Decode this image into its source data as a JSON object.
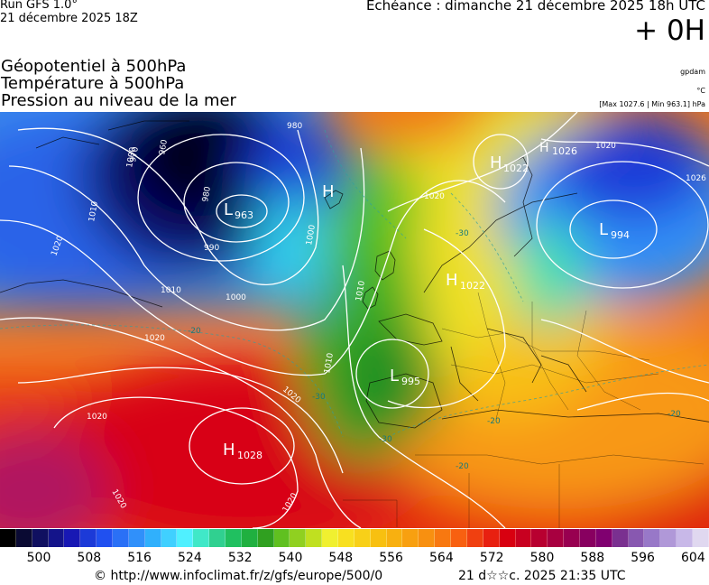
{
  "header": {
    "run_title": "Run GFS 1.0°",
    "run_date": "21 décembre 2025 18Z",
    "echeance": "Echéance : dimanche 21 décembre 2025 18h UTC",
    "offset": "+ 0H"
  },
  "fields": {
    "geopotential": "Géopotentiel à 500hPa",
    "temperature": "Température à 500hPa",
    "pressure": "Pression au niveau de la mer"
  },
  "units": {
    "geopotential": "gpdam",
    "temperature": "°C",
    "pressure": "[Max 1027.6 | Min 963.1] hPa"
  },
  "map": {
    "highs": [
      {
        "letter": "H",
        "value": "1022"
      },
      {
        "letter": "H",
        "value": "1026"
      },
      {
        "letter": "H",
        "value": "1022"
      },
      {
        "letter": "H",
        "value": "1028"
      },
      {
        "letter": "H",
        "value": ""
      }
    ],
    "lows": [
      {
        "letter": "L",
        "value": "963"
      },
      {
        "letter": "L",
        "value": "994"
      },
      {
        "letter": "L",
        "value": "995"
      }
    ],
    "isobar_labels": [
      "960",
      "970",
      "980",
      "980",
      "990",
      "1000",
      "1000",
      "1000",
      "1010",
      "1010",
      "1010",
      "1010",
      "1020",
      "1020",
      "1020",
      "1020",
      "1020",
      "1020",
      "1020",
      "1020",
      "1026"
    ],
    "temp_labels": [
      "-20",
      "-20",
      "-20",
      "-20",
      "-30",
      "-30",
      "-30"
    ]
  },
  "colorbar": {
    "ticks": [
      "500",
      "508",
      "516",
      "524",
      "532",
      "540",
      "548",
      "556",
      "564",
      "572",
      "580",
      "588",
      "596",
      "604"
    ],
    "colors": [
      "#000000",
      "#0a0a33",
      "#101060",
      "#14148a",
      "#1818b4",
      "#1c3ad8",
      "#2050f0",
      "#2a70f6",
      "#3090fa",
      "#30b0fc",
      "#40d0ff",
      "#50f0ff",
      "#40e8c8",
      "#30d090",
      "#20c060",
      "#20b040",
      "#30a020",
      "#60c020",
      "#90d020",
      "#c0e020",
      "#f0f030",
      "#f8e020",
      "#f8d018",
      "#f8c010",
      "#f8b010",
      "#f8a010",
      "#f89010",
      "#f87810",
      "#f86010",
      "#f04010",
      "#e82010",
      "#d80010",
      "#c80020",
      "#b80030",
      "#a80040",
      "#980050",
      "#880060",
      "#800070",
      "#7a3090",
      "#8858b0",
      "#9878c8",
      "#b098d8",
      "#c8b8e8",
      "#e0d8f0"
    ]
  },
  "footer": {
    "source": "© http://www.infoclimat.fr/z/gfs/europe/500/0",
    "generated": "21 d☆☆c. 2025 21:35 UTC"
  }
}
